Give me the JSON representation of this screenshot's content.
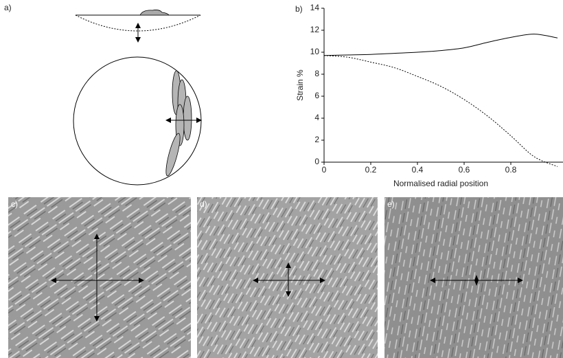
{
  "panels": {
    "a": {
      "label": "a)"
    },
    "c": {
      "label": "c)"
    },
    "d": {
      "label": "d)"
    },
    "e": {
      "label": "e)"
    }
  },
  "chart_data": {
    "type": "line",
    "label": "b)",
    "x_label": "Normalised radial position",
    "y_label": "Strain  %",
    "x": [
      0,
      0.1,
      0.2,
      0.3,
      0.4,
      0.5,
      0.6,
      0.7,
      0.8,
      0.9,
      1.0
    ],
    "series": [
      {
        "color": "#000000",
        "dash": false,
        "values": [
          9.7,
          9.75,
          9.8,
          9.9,
          10.0,
          10.15,
          10.4,
          10.9,
          11.35,
          11.65,
          11.3
        ]
      },
      {
        "color": "#000000",
        "dash": true,
        "values": [
          9.7,
          9.55,
          9.1,
          8.6,
          7.8,
          6.9,
          5.7,
          4.2,
          2.4,
          0.5,
          -0.4
        ]
      }
    ],
    "xlim": [
      0,
      1
    ],
    "xticks": [
      0,
      0.2,
      0.4,
      0.6,
      0.8
    ],
    "ylim": [
      0,
      14
    ],
    "yticks": [
      0,
      2,
      4,
      6,
      8,
      10,
      12,
      14
    ],
    "grid": false
  }
}
